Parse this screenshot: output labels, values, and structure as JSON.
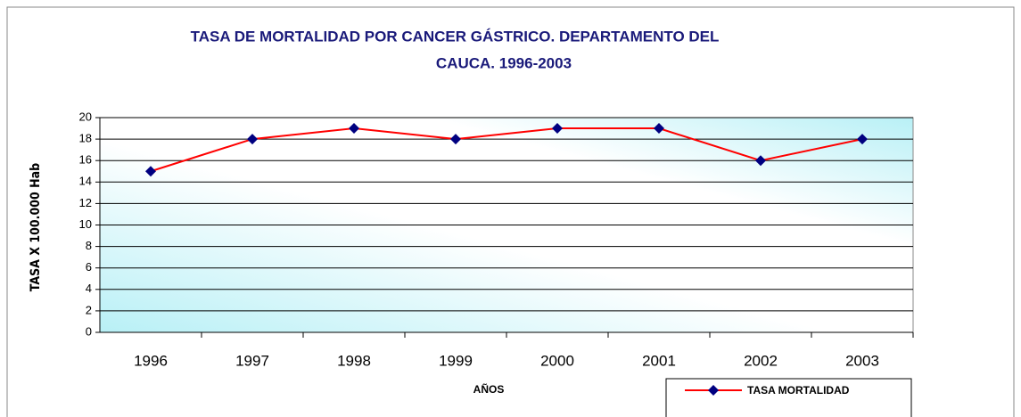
{
  "chart_data": {
    "type": "line",
    "title": [
      "TASA DE MORTALIDAD POR CANCER GÁSTRICO.  DEPARTAMENTO DEL",
      "CAUCA.  1996-2003"
    ],
    "x_label": "AÑOS",
    "y_label": "TASA X 100.000 Hab",
    "categories": [
      "1996",
      "1997",
      "1998",
      "1999",
      "2000",
      "2001",
      "2002",
      "2003"
    ],
    "series": [
      {
        "name": "TASA MORTALIDAD",
        "color": "#ff0000",
        "marker_color": "#000080",
        "values": [
          15,
          18,
          19,
          18,
          19,
          19,
          16,
          18
        ]
      }
    ],
    "ylim": [
      0,
      20
    ],
    "yticks": [
      0,
      2,
      4,
      6,
      8,
      10,
      12,
      14,
      16,
      18,
      20
    ],
    "grid": true,
    "legend": "bottom-right"
  }
}
